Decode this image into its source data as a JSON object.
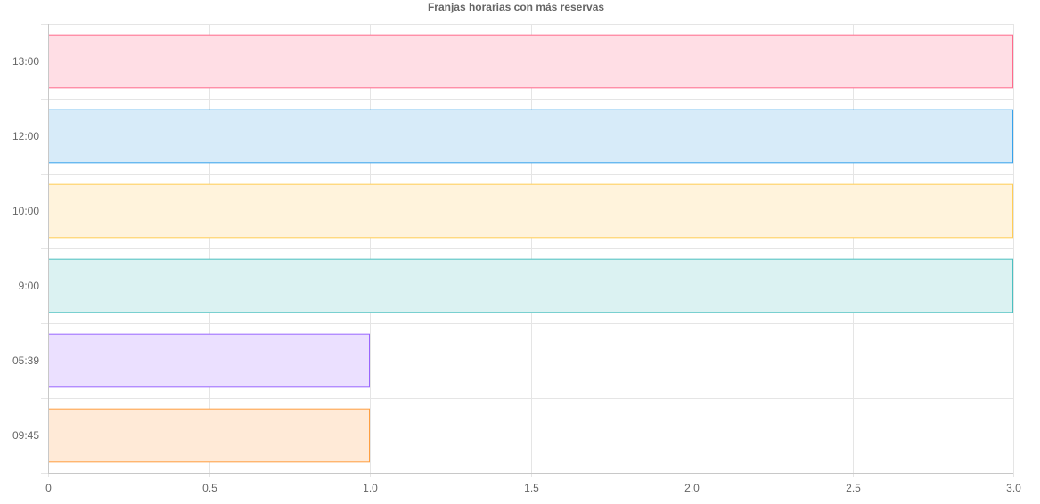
{
  "chart_data": {
    "type": "bar",
    "orientation": "horizontal",
    "title": "Franjas horarias con más reservas",
    "xlabel": "",
    "ylabel": "",
    "categories": [
      "13:00",
      "12:00",
      "10:00",
      "9:00",
      "05:39",
      "09:45"
    ],
    "values": [
      3,
      3,
      3,
      3,
      1,
      1
    ],
    "xlim": [
      0,
      3
    ],
    "xticks": [
      "0",
      "0.5",
      "1.0",
      "1.5",
      "2.0",
      "2.5",
      "3.0"
    ],
    "grid": true,
    "legend": "none",
    "bar_colors": [
      {
        "fill": "#ffdee5",
        "stroke": "#ff6a8c"
      },
      {
        "fill": "#d7ebf9",
        "stroke": "#36a2eb"
      },
      {
        "fill": "#fff3dc",
        "stroke": "#ffcd56"
      },
      {
        "fill": "#dbf2f2",
        "stroke": "#4bc0c0"
      },
      {
        "fill": "#ebe0ff",
        "stroke": "#9966ff"
      },
      {
        "fill": "#ffead7",
        "stroke": "#ff9f40"
      }
    ],
    "grid_color": "#e5e5e5",
    "axis_color": "#c8c8c8"
  }
}
